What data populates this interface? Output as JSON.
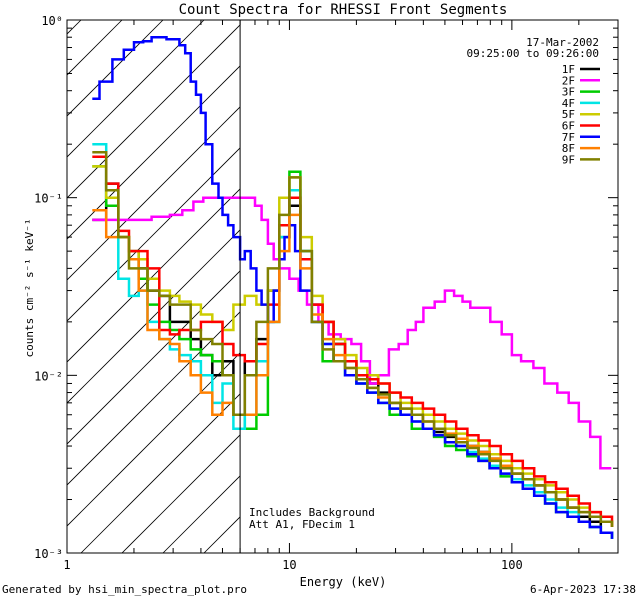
{
  "chart_data": {
    "type": "line",
    "title": "Count Spectra for RHESSI Front Segments",
    "xlabel": "Energy (keV)",
    "ylabel": "counts cm⁻² s⁻¹ keV⁻¹",
    "x_scale": "log",
    "y_scale": "log",
    "xlim": [
      1.0,
      300.0
    ],
    "ylim": [
      0.001,
      1.0
    ],
    "x_tick_labels": [
      "1",
      "10",
      "100"
    ],
    "y_tick_labels": [
      "10⁰",
      "10⁻¹",
      "10⁻²",
      "10⁻³"
    ],
    "date": "17-Mar-2002",
    "time_range": "09:25:00 to 09:26:00",
    "annotation_lines": [
      "Includes Background",
      "Att A1, FDecim 1"
    ],
    "attenuator_cutoff_keV": 6.0,
    "legend_position": "top-right",
    "series": [
      {
        "name": "1F",
        "color": "#000000",
        "x": [
          1.3,
          1.5,
          1.7,
          1.9,
          2.1,
          2.3,
          2.6,
          2.9,
          3.2,
          3.6,
          4.0,
          4.5,
          5.0,
          5.6,
          6.3,
          7.1,
          8.0,
          9.0,
          10.0,
          11.2,
          12.6,
          14.1,
          15.8,
          17.8,
          20.0,
          22.4,
          25.1,
          28.2,
          31.6,
          35.5,
          39.8,
          44.7,
          50.1,
          56.2,
          63.1,
          70.8,
          79.4,
          89.1,
          100,
          112,
          126,
          141,
          158,
          178,
          200,
          224,
          251,
          282
        ],
        "y": [
          0.075,
          0.12,
          0.06,
          0.05,
          0.04,
          0.03,
          0.028,
          0.02,
          0.02,
          0.016,
          0.013,
          0.01,
          0.012,
          0.006,
          0.012,
          0.016,
          0.03,
          0.07,
          0.09,
          0.05,
          0.025,
          0.02,
          0.015,
          0.012,
          0.01,
          0.009,
          0.008,
          0.007,
          0.006,
          0.006,
          0.005,
          0.0048,
          0.0045,
          0.0042,
          0.004,
          0.0037,
          0.0034,
          0.003,
          0.0028,
          0.0026,
          0.0024,
          0.0022,
          0.002,
          0.0018,
          0.0016,
          0.0015,
          0.0013,
          0.0012
        ]
      },
      {
        "name": "2F",
        "color": "#ff00ff",
        "x": [
          1.3,
          1.6,
          2.0,
          2.4,
          2.9,
          3.3,
          3.7,
          4.1,
          4.5,
          5.0,
          5.5,
          6.0,
          6.5,
          7.0,
          7.5,
          8.0,
          8.5,
          9.0,
          10.0,
          11.0,
          12.0,
          13.5,
          15.0,
          17.0,
          19.0,
          21.0,
          23.0,
          25.0,
          28.0,
          31.0,
          34.0,
          37.0,
          40.0,
          45.0,
          50.0,
          55.0,
          60.0,
          65.0,
          70.0,
          80.0,
          90.0,
          100,
          110,
          125,
          140,
          160,
          180,
          200,
          225,
          250,
          280
        ],
        "y": [
          0.075,
          0.075,
          0.075,
          0.078,
          0.08,
          0.085,
          0.095,
          0.1,
          0.1,
          0.1,
          0.1,
          0.1,
          0.1,
          0.09,
          0.075,
          0.055,
          0.045,
          0.04,
          0.035,
          0.03,
          0.025,
          0.02,
          0.017,
          0.016,
          0.015,
          0.012,
          0.009,
          0.01,
          0.014,
          0.015,
          0.018,
          0.02,
          0.024,
          0.026,
          0.03,
          0.028,
          0.026,
          0.024,
          0.024,
          0.02,
          0.017,
          0.013,
          0.012,
          0.011,
          0.009,
          0.008,
          0.007,
          0.0055,
          0.0045,
          0.003,
          0.003
        ]
      },
      {
        "name": "3F",
        "color": "#00cc00",
        "x": [
          1.3,
          1.5,
          1.7,
          1.9,
          2.1,
          2.3,
          2.6,
          2.9,
          3.2,
          3.6,
          4.0,
          4.5,
          5.0,
          5.6,
          6.3,
          7.1,
          8.0,
          9.0,
          10.0,
          11.2,
          12.6,
          14.1,
          15.8,
          17.8,
          20.0,
          22.4,
          25.1,
          28.2,
          31.6,
          35.5,
          39.8,
          44.7,
          50.1,
          56.2,
          63.1,
          70.8,
          79.4,
          89.1,
          100,
          112,
          126,
          141,
          158,
          178,
          200,
          224,
          251,
          282
        ],
        "y": [
          0.15,
          0.09,
          0.06,
          0.045,
          0.035,
          0.025,
          0.02,
          0.018,
          0.016,
          0.014,
          0.013,
          0.012,
          0.01,
          0.006,
          0.005,
          0.006,
          0.02,
          0.06,
          0.14,
          0.05,
          0.02,
          0.012,
          0.015,
          0.01,
          0.009,
          0.008,
          0.007,
          0.006,
          0.006,
          0.005,
          0.005,
          0.0045,
          0.004,
          0.0038,
          0.0035,
          0.0033,
          0.003,
          0.0027,
          0.0025,
          0.0023,
          0.0021,
          0.0019,
          0.0017,
          0.0016,
          0.0015,
          0.0014,
          0.0013,
          0.0012
        ]
      },
      {
        "name": "4F",
        "color": "#00e5e5",
        "x": [
          1.3,
          1.5,
          1.7,
          1.9,
          2.1,
          2.3,
          2.6,
          2.9,
          3.2,
          3.6,
          4.0,
          4.5,
          5.0,
          5.6,
          6.3,
          7.1,
          8.0,
          9.0,
          10.0,
          11.2,
          12.6,
          14.1,
          15.8,
          17.8,
          20.0,
          22.4,
          25.1,
          28.2,
          31.6,
          35.5,
          39.8,
          44.7,
          50.1,
          56.2,
          63.1,
          70.8,
          79.4,
          89.1,
          100,
          112,
          126,
          141,
          158,
          178,
          200,
          224,
          251,
          282
        ],
        "y": [
          0.2,
          0.1,
          0.035,
          0.028,
          0.03,
          0.02,
          0.016,
          0.014,
          0.013,
          0.012,
          0.01,
          0.007,
          0.009,
          0.005,
          0.006,
          0.012,
          0.02,
          0.06,
          0.11,
          0.05,
          0.02,
          0.015,
          0.012,
          0.01,
          0.009,
          0.008,
          0.007,
          0.0065,
          0.006,
          0.0055,
          0.005,
          0.0046,
          0.0042,
          0.004,
          0.0037,
          0.0034,
          0.0031,
          0.0028,
          0.0026,
          0.0024,
          0.0022,
          0.002,
          0.0018,
          0.0017,
          0.0015,
          0.0014,
          0.0013,
          0.0012
        ]
      },
      {
        "name": "5F",
        "color": "#cccc00",
        "x": [
          1.3,
          1.5,
          1.7,
          1.9,
          2.1,
          2.3,
          2.6,
          2.9,
          3.2,
          3.6,
          4.0,
          4.5,
          5.0,
          5.6,
          6.3,
          7.1,
          8.0,
          9.0,
          10.0,
          11.2,
          12.6,
          14.1,
          15.8,
          17.8,
          20.0,
          22.4,
          25.1,
          28.2,
          31.6,
          35.5,
          39.8,
          44.7,
          50.1,
          56.2,
          63.1,
          70.8,
          79.4,
          89.1,
          100,
          112,
          126,
          141,
          158,
          178,
          200,
          224,
          251,
          282
        ],
        "y": [
          0.15,
          0.1,
          0.06,
          0.05,
          0.045,
          0.035,
          0.03,
          0.028,
          0.026,
          0.025,
          0.022,
          0.02,
          0.018,
          0.025,
          0.028,
          0.025,
          0.03,
          0.1,
          0.13,
          0.06,
          0.028,
          0.02,
          0.016,
          0.013,
          0.011,
          0.01,
          0.009,
          0.008,
          0.007,
          0.0065,
          0.006,
          0.0055,
          0.005,
          0.0047,
          0.0043,
          0.004,
          0.0036,
          0.0033,
          0.003,
          0.0028,
          0.0026,
          0.0024,
          0.0022,
          0.002,
          0.0018,
          0.0017,
          0.0015,
          0.0014
        ]
      },
      {
        "name": "6F",
        "color": "#ff0000",
        "x": [
          1.3,
          1.5,
          1.7,
          1.9,
          2.1,
          2.3,
          2.6,
          2.9,
          3.2,
          3.6,
          4.0,
          4.5,
          5.0,
          5.6,
          6.3,
          7.1,
          8.0,
          9.0,
          10.0,
          11.2,
          12.6,
          14.1,
          15.8,
          17.8,
          20.0,
          22.4,
          25.1,
          28.2,
          31.6,
          35.5,
          39.8,
          44.7,
          50.1,
          56.2,
          63.1,
          70.8,
          79.4,
          89.1,
          100,
          112,
          126,
          141,
          158,
          178,
          200,
          224,
          251,
          282
        ],
        "y": [
          0.17,
          0.12,
          0.065,
          0.05,
          0.05,
          0.04,
          0.018,
          0.017,
          0.018,
          0.018,
          0.02,
          0.02,
          0.015,
          0.013,
          0.012,
          0.015,
          0.025,
          0.07,
          0.1,
          0.045,
          0.025,
          0.02,
          0.015,
          0.012,
          0.01,
          0.0095,
          0.009,
          0.008,
          0.0075,
          0.007,
          0.0065,
          0.006,
          0.0055,
          0.005,
          0.0046,
          0.0043,
          0.004,
          0.0036,
          0.0033,
          0.003,
          0.0027,
          0.0025,
          0.0023,
          0.0021,
          0.0019,
          0.0017,
          0.0016,
          0.0014
        ]
      },
      {
        "name": "7F",
        "color": "#0000ff",
        "x": [
          1.3,
          1.4,
          1.6,
          1.8,
          2.0,
          2.2,
          2.4,
          2.6,
          2.8,
          3.0,
          3.2,
          3.4,
          3.6,
          3.8,
          4.0,
          4.2,
          4.5,
          4.8,
          5.0,
          5.3,
          5.6,
          6.0,
          6.3,
          6.7,
          7.1,
          7.5,
          8.0,
          8.5,
          9.0,
          9.5,
          10.0,
          10.6,
          11.2,
          12.6,
          14.1,
          15.8,
          17.8,
          20.0,
          22.4,
          25.1,
          28.2,
          31.6,
          35.5,
          39.8,
          44.7,
          50.1,
          56.2,
          63.1,
          70.8,
          79.4,
          89.1,
          100,
          112,
          126,
          141,
          158,
          178,
          200,
          224,
          251,
          282
        ],
        "y": [
          0.36,
          0.45,
          0.6,
          0.68,
          0.75,
          0.76,
          0.8,
          0.8,
          0.78,
          0.78,
          0.72,
          0.65,
          0.45,
          0.38,
          0.3,
          0.2,
          0.12,
          0.1,
          0.08,
          0.07,
          0.06,
          0.045,
          0.05,
          0.04,
          0.03,
          0.025,
          0.02,
          0.03,
          0.045,
          0.06,
          0.07,
          0.05,
          0.03,
          0.02,
          0.015,
          0.012,
          0.01,
          0.009,
          0.008,
          0.007,
          0.0065,
          0.006,
          0.0055,
          0.005,
          0.0046,
          0.0042,
          0.004,
          0.0036,
          0.0033,
          0.003,
          0.0028,
          0.0025,
          0.0023,
          0.0021,
          0.0019,
          0.0017,
          0.0016,
          0.0015,
          0.0014,
          0.0013,
          0.0012
        ]
      },
      {
        "name": "8F",
        "color": "#ff8000",
        "x": [
          1.3,
          1.5,
          1.7,
          1.9,
          2.1,
          2.3,
          2.6,
          2.9,
          3.2,
          3.6,
          4.0,
          4.5,
          5.0,
          5.6,
          6.3,
          7.1,
          8.0,
          9.0,
          10.0,
          11.2,
          12.6,
          14.1,
          15.8,
          17.8,
          20.0,
          22.4,
          25.1,
          28.2,
          31.6,
          35.5,
          39.8,
          44.7,
          50.1,
          56.2,
          63.1,
          70.8,
          79.4,
          89.1,
          100,
          112,
          126,
          141,
          158,
          178,
          200,
          224,
          251,
          282
        ],
        "y": [
          0.085,
          0.06,
          0.06,
          0.045,
          0.03,
          0.018,
          0.016,
          0.015,
          0.012,
          0.01,
          0.008,
          0.006,
          0.007,
          0.006,
          0.006,
          0.01,
          0.02,
          0.05,
          0.08,
          0.04,
          0.022,
          0.016,
          0.013,
          0.011,
          0.0095,
          0.0085,
          0.0075,
          0.007,
          0.0065,
          0.006,
          0.0055,
          0.005,
          0.0047,
          0.0044,
          0.004,
          0.0037,
          0.0034,
          0.0031,
          0.0028,
          0.0026,
          0.0024,
          0.0022,
          0.002,
          0.0018,
          0.0017,
          0.0016,
          0.0015,
          0.0014
        ]
      },
      {
        "name": "9F",
        "color": "#808000",
        "x": [
          1.3,
          1.5,
          1.7,
          1.9,
          2.1,
          2.3,
          2.6,
          2.9,
          3.2,
          3.6,
          4.0,
          4.5,
          5.0,
          5.6,
          6.3,
          7.1,
          8.0,
          9.0,
          10.0,
          11.2,
          12.6,
          14.1,
          15.8,
          17.8,
          20.0,
          22.4,
          25.1,
          28.2,
          31.6,
          35.5,
          39.8,
          44.7,
          50.1,
          56.2,
          63.1,
          70.8,
          79.4,
          89.1,
          100,
          112,
          126,
          141,
          158,
          178,
          200,
          224,
          251,
          282
        ],
        "y": [
          0.18,
          0.11,
          0.06,
          0.04,
          0.04,
          0.03,
          0.028,
          0.025,
          0.025,
          0.018,
          0.016,
          0.015,
          0.01,
          0.006,
          0.01,
          0.02,
          0.04,
          0.08,
          0.13,
          0.05,
          0.02,
          0.014,
          0.012,
          0.011,
          0.0095,
          0.0085,
          0.0078,
          0.007,
          0.0065,
          0.006,
          0.0055,
          0.005,
          0.0046,
          0.0042,
          0.0039,
          0.0036,
          0.0033,
          0.003,
          0.0028,
          0.0026,
          0.0024,
          0.0022,
          0.002,
          0.0018,
          0.0017,
          0.0016,
          0.0015,
          0.0014
        ]
      }
    ]
  },
  "footer": {
    "generated_by": "Generated by hsi_min_spectra_plot.pro",
    "timestamp": "6-Apr-2023 17:38"
  }
}
